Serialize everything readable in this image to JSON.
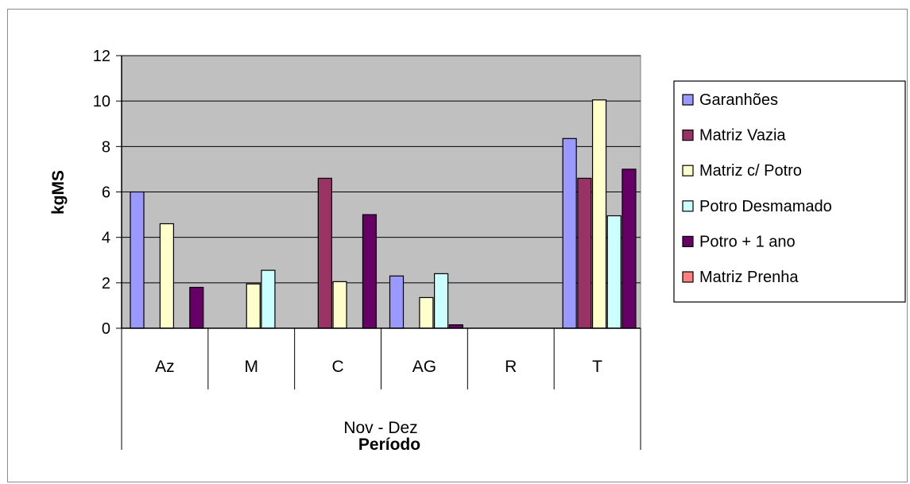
{
  "chart_data": {
    "type": "bar",
    "title": "",
    "ylabel": "kgMS",
    "xlabel": "Período",
    "group_label": "Nov - Dez",
    "categories": [
      "Az",
      "M",
      "C",
      "AG",
      "R",
      "T"
    ],
    "ylim": [
      0,
      12
    ],
    "yticks": [
      "0",
      "2",
      "4",
      "6",
      "8",
      "10",
      "12"
    ],
    "grid": true,
    "legend_position": "right",
    "series": [
      {
        "name": "Garanhões",
        "color": "#9999ff",
        "values": [
          6.0,
          0,
          0,
          2.3,
          0,
          8.35
        ]
      },
      {
        "name": "Matriz Vazia",
        "color": "#993366",
        "values": [
          0,
          0,
          6.6,
          0,
          0,
          6.6
        ]
      },
      {
        "name": "Matriz c/ Potro",
        "color": "#ffffcc",
        "values": [
          4.6,
          1.95,
          2.05,
          1.35,
          0,
          10.05
        ]
      },
      {
        "name": "Potro Desmamado",
        "color": "#ccffff",
        "values": [
          0,
          2.55,
          0,
          2.4,
          0,
          4.95
        ]
      },
      {
        "name": "Potro + 1 ano",
        "color": "#660066",
        "values": [
          1.8,
          0,
          5.0,
          0.15,
          0,
          7.0
        ]
      },
      {
        "name": "Matriz Prenha",
        "color": "#ff8080",
        "values": [
          0,
          0,
          0,
          0,
          0,
          0
        ]
      }
    ],
    "plot_background": "#c0c0c0"
  }
}
